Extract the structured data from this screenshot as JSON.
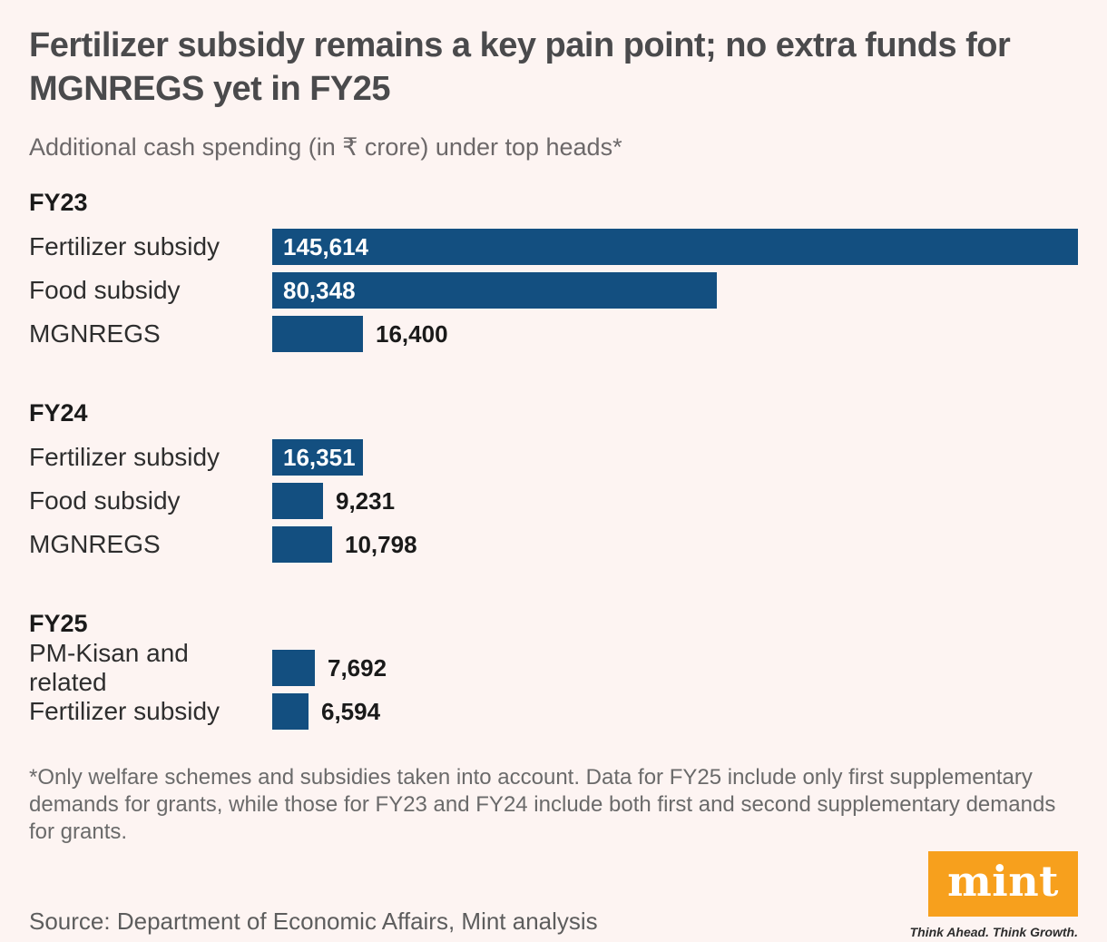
{
  "title": "Fertilizer subsidy remains a key pain point; no extra funds for MGNREGS yet in FY25",
  "subtitle": "Additional cash spending (in ₹ crore) under top heads*",
  "colors": {
    "background": "#fdf4f2",
    "bar": "#134f80",
    "logo_orange": "#f7a01d"
  },
  "chart_data": {
    "type": "bar",
    "orientation": "horizontal",
    "unit": "₹ crore",
    "grid": false,
    "legend": false,
    "value_range": [
      0,
      145614
    ],
    "groups": [
      {
        "label": "FY23",
        "items": [
          {
            "category": "Fertilizer subsidy",
            "value": 145614,
            "display": "145,614",
            "value_inside": true
          },
          {
            "category": "Food subsidy",
            "value": 80348,
            "display": "80,348",
            "value_inside": true
          },
          {
            "category": "MGNREGS",
            "value": 16400,
            "display": "16,400",
            "value_inside": false
          }
        ]
      },
      {
        "label": "FY24",
        "items": [
          {
            "category": "Fertilizer subsidy",
            "value": 16351,
            "display": "16,351",
            "value_inside": true
          },
          {
            "category": "Food subsidy",
            "value": 9231,
            "display": "9,231",
            "value_inside": false
          },
          {
            "category": "MGNREGS",
            "value": 10798,
            "display": "10,798",
            "value_inside": false
          }
        ]
      },
      {
        "label": "FY25",
        "items": [
          {
            "category": "PM-Kisan and related",
            "value": 7692,
            "display": "7,692",
            "value_inside": false
          },
          {
            "category": "Fertilizer subsidy",
            "value": 6594,
            "display": "6,594",
            "value_inside": false
          }
        ]
      }
    ]
  },
  "footnote": "*Only welfare schemes and subsidies taken into account. Data for FY25 include only first supplementary demands for grants, while those for FY23 and FY24 include both first and second supplementary demands for grants.",
  "source": "Source: Department of Economic Affairs, Mint analysis",
  "logo": {
    "text": "mint",
    "tagline": "Think Ahead. Think Growth."
  }
}
